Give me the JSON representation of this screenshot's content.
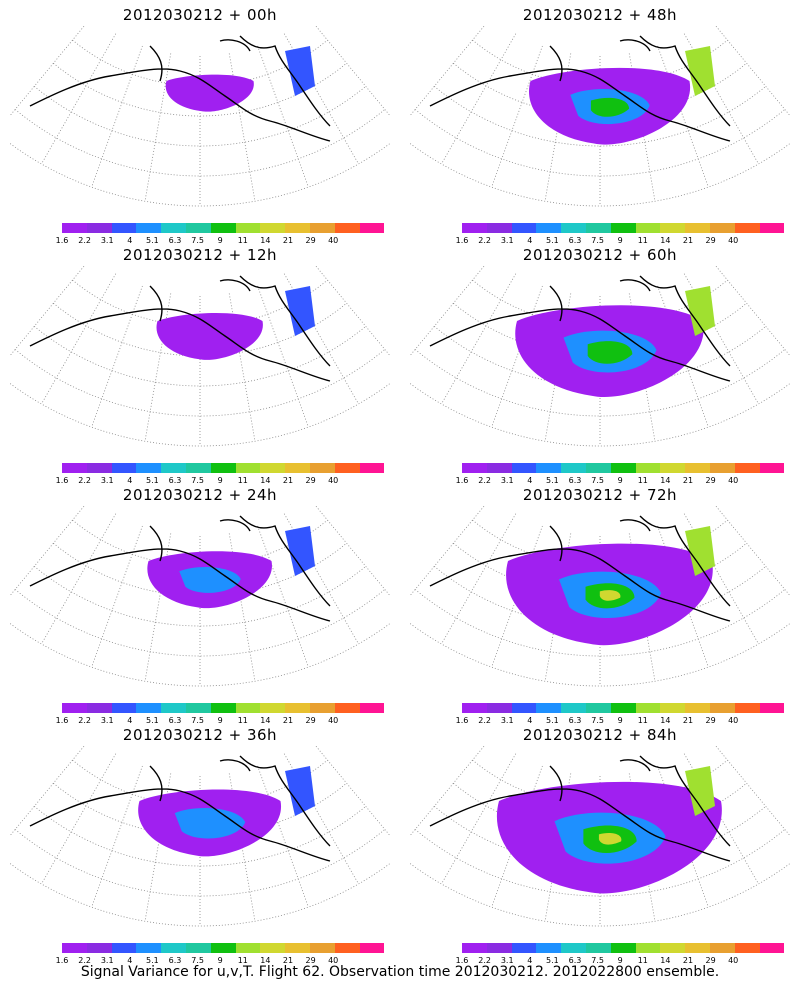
{
  "colorbar": {
    "colors": [
      "#a020f0",
      "#8a2be2",
      "#3355ff",
      "#1e90ff",
      "#1ec8c8",
      "#20c8a0",
      "#10c010",
      "#a0e030",
      "#d0d830",
      "#e8c030",
      "#e8a030",
      "#ff6020",
      "#ff1493"
    ],
    "labels": [
      "1.6",
      "2.2",
      "3.1",
      "4",
      "5.1",
      "6.3",
      "7.5",
      "9",
      "11",
      "14",
      "21",
      "29",
      "40"
    ]
  },
  "panels": [
    {
      "title": "2012030212 + 00h",
      "intensity": 0.15
    },
    {
      "title": "2012030212 + 48h",
      "intensity": 0.55
    },
    {
      "title": "2012030212 + 12h",
      "intensity": 0.25
    },
    {
      "title": "2012030212 + 60h",
      "intensity": 0.7
    },
    {
      "title": "2012030212 + 24h",
      "intensity": 0.35
    },
    {
      "title": "2012030212 + 72h",
      "intensity": 0.8
    },
    {
      "title": "2012030212 + 36h",
      "intensity": 0.45
    },
    {
      "title": "2012030212 + 84h",
      "intensity": 0.9
    }
  ],
  "footer": "Signal Variance for u,v,T. Flight 62. Observation time 2012030212. 2012022800 ensemble."
}
